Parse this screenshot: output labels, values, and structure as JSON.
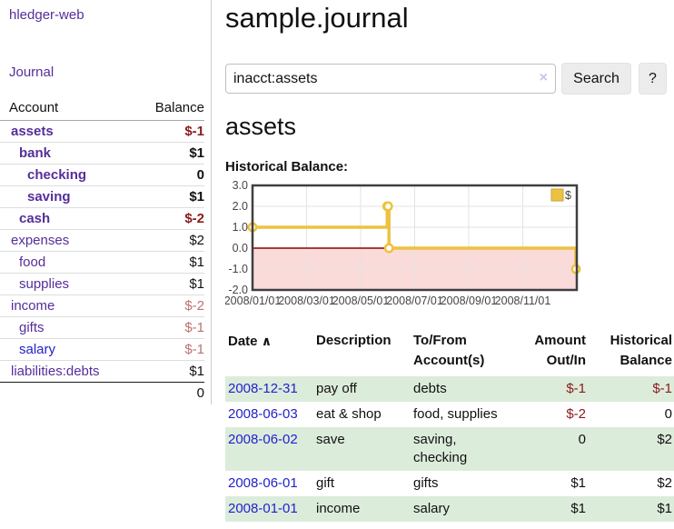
{
  "colors": {
    "link_purple": "#552e9a",
    "link_blue": "#2222cc",
    "negative_dark": "#8b1a1a",
    "negative_light": "#bd7171",
    "row_green": "#dcecdb",
    "chart_line_gold": "#edc240",
    "chart_negative_fill": "#fbdada",
    "chart_zero_line": "#8b0000"
  },
  "sidebar": {
    "app_title": "hledger-web",
    "nav": {
      "journal": "Journal"
    },
    "accounts": {
      "header": {
        "account": "Account",
        "balance": "Balance"
      },
      "rows": [
        {
          "name": "assets",
          "balance": "$-1",
          "indent": 1
        },
        {
          "name": "bank",
          "balance": "$1",
          "indent": 2
        },
        {
          "name": "checking",
          "balance": "0",
          "indent": 3
        },
        {
          "name": "saving",
          "balance": "$1",
          "indent": 3
        },
        {
          "name": "cash",
          "balance": "$-2",
          "indent": 2
        },
        {
          "name": "expenses",
          "balance": "$2",
          "indent": 1
        },
        {
          "name": "food",
          "balance": "$1",
          "indent": 2
        },
        {
          "name": "supplies",
          "balance": "$1",
          "indent": 2
        },
        {
          "name": "income",
          "balance": "$-2",
          "indent": 1
        },
        {
          "name": "gifts",
          "balance": "$-1",
          "indent": 2
        },
        {
          "name": "salary",
          "balance": "$-1",
          "indent": 2
        },
        {
          "name": "liabilities:debts",
          "balance": "$1",
          "indent": 1
        }
      ],
      "total": "0"
    }
  },
  "main": {
    "title": "sample.journal",
    "search": {
      "value": "inacct:assets",
      "clear_icon": "×",
      "search_button": "Search",
      "help_button": "?"
    },
    "heading": "assets",
    "chart_title": "Historical Balance:"
  },
  "chart_data": {
    "type": "line",
    "step": true,
    "title": "Historical Balance",
    "x_start": "2008-01-01",
    "x_end": "2009-01-01",
    "ylim": [
      -2,
      3
    ],
    "y_ticks": [
      "3.0",
      "2.0",
      "1.0",
      "0.0",
      "-1.0",
      "-2.0"
    ],
    "x_ticks": [
      "2008/01/01",
      "2008/03/01",
      "2008/05/01",
      "2008/07/01",
      "2008/09/01",
      "2008/11/01"
    ],
    "grid": true,
    "legend": "$",
    "legend_position": "top-right",
    "negative_fill": "#fbdada",
    "zero_line_color": "#8b0000",
    "series": [
      {
        "name": "$",
        "color": "#edc240",
        "points": [
          [
            "2008-01-01",
            1
          ],
          [
            "2008-06-01",
            2
          ],
          [
            "2008-06-02",
            2
          ],
          [
            "2008-06-03",
            0
          ],
          [
            "2008-12-31",
            -1
          ]
        ]
      }
    ]
  },
  "register": {
    "headers": {
      "date": "Date",
      "sort_icon": "∧",
      "description": "Description",
      "accounts_line1": "To/From",
      "accounts_line2": "Account(s)",
      "amount_line1": "Amount",
      "amount_line2": "Out/In",
      "balance_line1": "Historical",
      "balance_line2": "Balance"
    },
    "rows": [
      {
        "date": "2008-12-31",
        "description": "pay off",
        "accounts": "debts",
        "amount": "$-1",
        "balance": "$-1"
      },
      {
        "date": "2008-06-03",
        "description": "eat & shop",
        "accounts": "food, supplies",
        "amount": "$-2",
        "balance": "0"
      },
      {
        "date": "2008-06-02",
        "description": "save",
        "accounts": "saving, checking",
        "amount": "0",
        "balance": "$2"
      },
      {
        "date": "2008-06-01",
        "description": "gift",
        "accounts": "gifts",
        "amount": "$1",
        "balance": "$2"
      },
      {
        "date": "2008-01-01",
        "description": "income",
        "accounts": "salary",
        "amount": "$1",
        "balance": "$1"
      }
    ]
  }
}
